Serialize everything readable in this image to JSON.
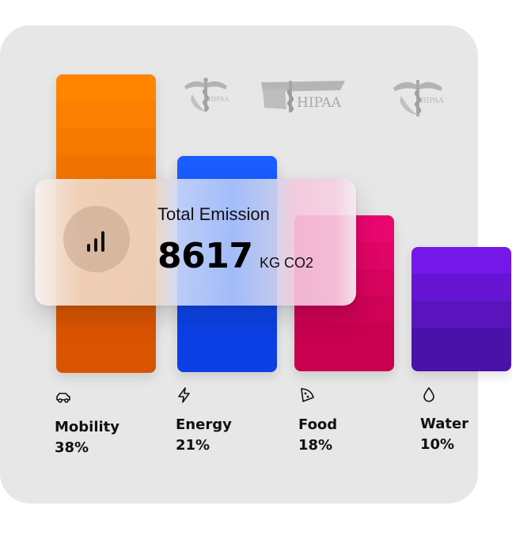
{
  "chart_data": {
    "type": "bar",
    "categories": [
      "Mobility",
      "Energy",
      "Food",
      "Water"
    ],
    "values": [
      38,
      21,
      18,
      10
    ],
    "value_labels": [
      "38%",
      "21%",
      "18%",
      "10%"
    ],
    "title": "",
    "xlabel": "",
    "ylabel": "",
    "grid": false
  },
  "summary": {
    "title": "Total Emission",
    "value": "8617",
    "unit": "KG CO2",
    "icon": "bar-chart-icon"
  },
  "categories": [
    {
      "name": "Mobility",
      "percent": "38%",
      "icon": "car-icon",
      "color_top": "#ff8500",
      "color_bottom": "#d95400"
    },
    {
      "name": "Energy",
      "percent": "21%",
      "icon": "lightning-icon",
      "color_top": "#1a5cff",
      "color_bottom": "#0c3fe4"
    },
    {
      "name": "Food",
      "percent": "18%",
      "icon": "pizza-slice-icon",
      "color_top": "#e8076e",
      "color_bottom": "#c8004e"
    },
    {
      "name": "Water",
      "percent": "10%",
      "icon": "water-drop-icon",
      "color_top": "#7417e8",
      "color_bottom": "#4a12a8"
    }
  ],
  "watermarks": [
    {
      "text": "HIPAA",
      "icon": "caduceus-icon"
    },
    {
      "text": "HIPAA",
      "icon": "caduceus-icon"
    },
    {
      "text": "HIPAA",
      "icon": "caduceus-icon"
    }
  ]
}
